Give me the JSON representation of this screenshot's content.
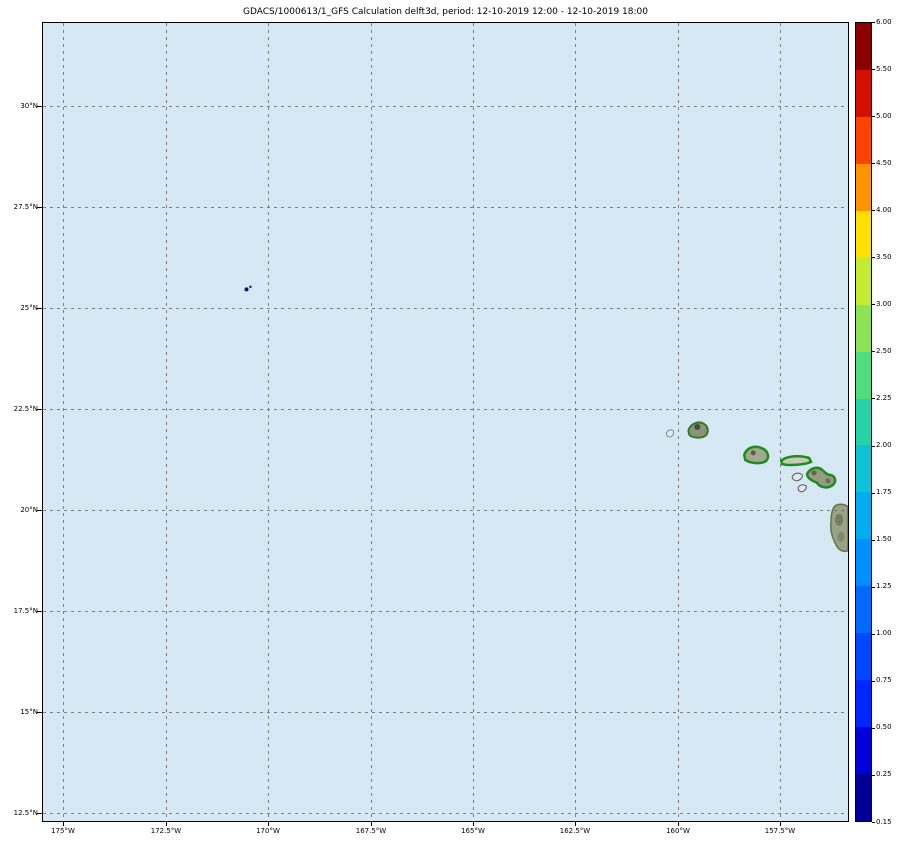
{
  "title": "GDACS/1000613/1_GFS Calculation delft3d, period: 12-10-2019 12:00 - 12-10-2019 18:00",
  "axes": {
    "x_tick_labels": [
      "175°W",
      "172.5°W",
      "170°W",
      "167.5°W",
      "165°W",
      "162.5°W",
      "160°W",
      "157.5°W"
    ],
    "y_tick_labels": [
      "30°N",
      "27.5°N",
      "25°N",
      "22.5°N",
      "20°N",
      "17.5°N",
      "15°N",
      "12.5°N"
    ]
  },
  "colorbar": {
    "tick_labels_top_to_bottom": [
      "6.00",
      "5.50",
      "5.00",
      "4.50",
      "4.00",
      "3.50",
      "3.00",
      "2.50",
      "2.25",
      "2.00",
      "1.75",
      "1.50",
      "1.25",
      "1.00",
      "0.75",
      "0.50",
      "0.25",
      "0.15"
    ],
    "segment_colors_top_to_bottom": [
      "#8b0000",
      "#d40f00",
      "#ff4200",
      "#ff9400",
      "#ffdf00",
      "#c6e932",
      "#8ce455",
      "#4fdd80",
      "#28d2a8",
      "#0fc3d6",
      "#00adf0",
      "#008fff",
      "#006aff",
      "#0047ff",
      "#0026ff",
      "#0000da",
      "#000096"
    ]
  },
  "colors": {
    "ocean": "#d6e8f4",
    "grid": "#6e6e6e",
    "frame": "#000000",
    "island_fill": "#949b7f",
    "island_contour": "#1e8c1e",
    "storm_marker": "#00127d"
  },
  "chart_data": {
    "type": "heatmap",
    "title": "GDACS/1000613/1_GFS Calculation delft3d, period: 12-10-2019 12:00 - 12-10-2019 18:00",
    "x_tick_values_deg_w": [
      175,
      172.5,
      170,
      167.5,
      165,
      162.5,
      160,
      157.5
    ],
    "y_tick_values_deg_n": [
      12.5,
      15,
      17.5,
      20,
      22.5,
      25,
      27.5,
      30
    ],
    "colorbar_range": [
      0.15,
      6.0
    ],
    "colorbar_tick_values": [
      0.15,
      0.25,
      0.5,
      0.75,
      1.0,
      1.25,
      1.5,
      1.75,
      2.0,
      2.25,
      2.5,
      3.0,
      3.5,
      4.0,
      4.5,
      5.0,
      5.5,
      6.0
    ],
    "region": "Hawaiian Islands, North Pacific",
    "storm_marker_approx": {
      "lon_deg_w": 170.5,
      "lat_deg_n": 25.5
    },
    "grid": "dashed",
    "legend_position": "right-colorbar"
  }
}
